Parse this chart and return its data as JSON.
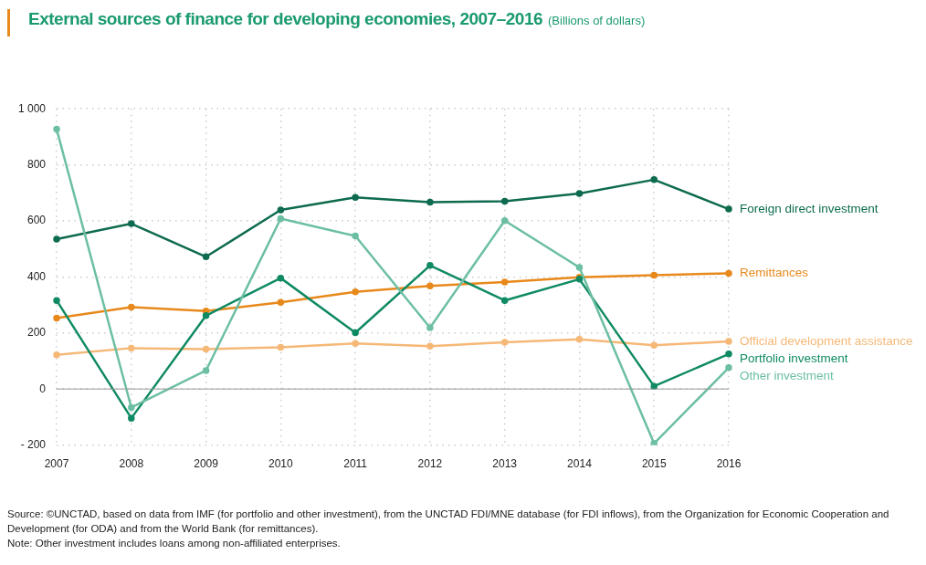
{
  "chart_data": {
    "type": "line",
    "title": "External sources of finance for developing economies, 2007–2016",
    "subtitle": "(Billions of dollars)",
    "categories": [
      "2007",
      "2008",
      "2009",
      "2010",
      "2011",
      "2012",
      "2013",
      "2014",
      "2015",
      "2016"
    ],
    "series": [
      {
        "name": "Foreign direct investment",
        "color": "#0e6b4f",
        "values": [
          535,
          590,
          472,
          639,
          684,
          667,
          670,
          698,
          747,
          642
        ]
      },
      {
        "name": "Remittances",
        "color": "#e8891c",
        "values": [
          253,
          292,
          278,
          309,
          347,
          368,
          382,
          399,
          406,
          413
        ]
      },
      {
        "name": "Official development assistance",
        "color": "#f5b877",
        "values": [
          122,
          146,
          142,
          149,
          163,
          153,
          167,
          177,
          156,
          170
        ]
      },
      {
        "name": "Portfolio investment",
        "color": "#108a64",
        "values": [
          316,
          -104,
          262,
          396,
          201,
          441,
          316,
          392,
          10,
          125
        ]
      },
      {
        "name": "Other investment",
        "color": "#6cbfa3",
        "values": [
          927,
          -66,
          66,
          608,
          546,
          219,
          601,
          434,
          -194,
          76
        ]
      }
    ],
    "ylim": [
      -200,
      1000
    ],
    "yticks": [
      {
        "value": -200,
        "label": "- 200"
      },
      0,
      200,
      400,
      600,
      800,
      {
        "value": 1000,
        "label": "1 000"
      }
    ],
    "ref_lines": [
      {
        "axis": "y",
        "value": 0,
        "color": "#999999"
      }
    ],
    "grid": true,
    "legend": false,
    "marker": "circle",
    "line_style": "solid",
    "annotations": [
      "Source: ©UNCTAD, based on data from IMF (for portfolio and other investment), from the UNCTAD FDI/MNE database (for FDI inflows), from the Organization for Economic Cooperation and Development (for ODA) and from the World Bank (for remittances).",
      "Note: Other investment includes loans among non-affiliated enterprises."
    ]
  }
}
